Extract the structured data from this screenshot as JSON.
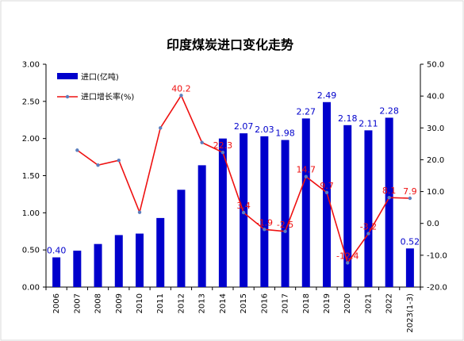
{
  "chart_data": {
    "type": "bar+line",
    "title": "印度煤炭进口变化走势",
    "categories": [
      "2006",
      "2007",
      "2008",
      "2009",
      "2010",
      "2011",
      "2012",
      "2013",
      "2014",
      "2015",
      "2016",
      "2017",
      "2018",
      "2019",
      "2020",
      "2021",
      "2022",
      "2023(1-3)"
    ],
    "series": [
      {
        "name": "进口(亿吨)",
        "type": "bar",
        "axis": "left",
        "color": "#0000CC",
        "values": [
          0.4,
          0.49,
          0.58,
          0.7,
          0.72,
          0.93,
          1.31,
          1.64,
          2.0,
          2.07,
          2.03,
          1.98,
          2.27,
          2.49,
          2.18,
          2.11,
          2.28,
          0.52
        ],
        "labels": [
          "0.40",
          "",
          "",
          "",
          "",
          "",
          "",
          "",
          "",
          "2.07",
          "2.03",
          "1.98",
          "2.27",
          "2.49",
          "2.18",
          "2.11",
          "2.28",
          "0.52"
        ]
      },
      {
        "name": "进口增长率(%)",
        "type": "line",
        "axis": "right",
        "color": "#EE1111",
        "marker_color": "#5B7FBF",
        "values": [
          null,
          23.0,
          18.3,
          19.8,
          3.5,
          30.0,
          40.2,
          25.4,
          22.3,
          3.4,
          -1.9,
          -2.5,
          14.7,
          9.7,
          -12.4,
          -3.2,
          8.1,
          7.9
        ],
        "labels": [
          "",
          "",
          "",
          "",
          "",
          "",
          "40.2",
          "",
          "22.3",
          "3.4",
          "-1.9",
          "-2.5",
          "14.7",
          "9.7",
          "-12.4",
          "-3.2",
          "8.1",
          "7.9"
        ]
      }
    ],
    "y_left": {
      "min": 0,
      "max": 3,
      "step": 0.5,
      "ticks": [
        "0.00",
        "0.50",
        "1.00",
        "1.50",
        "2.00",
        "2.50",
        "3.00"
      ]
    },
    "y_right": {
      "min": -20,
      "max": 50,
      "step": 10,
      "ticks": [
        "-20.0",
        "-10.0",
        "0.0",
        "10.0",
        "20.0",
        "30.0",
        "40.0",
        "50.0"
      ]
    },
    "grid": false,
    "legend_position": "top-left"
  }
}
